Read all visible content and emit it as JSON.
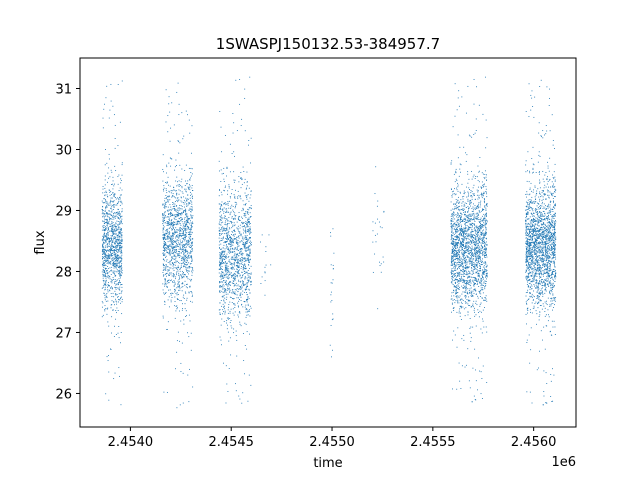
{
  "chart_data": {
    "type": "scatter",
    "title": "1SWASPJ150132.53-384957.7",
    "xlabel": "time",
    "ylabel": "flux",
    "x_offset_label": "1e6",
    "xlim": [
      2453750,
      2456210
    ],
    "ylim": [
      25.45,
      31.5
    ],
    "x_ticks": [
      2454000,
      2454500,
      2455000,
      2455500,
      2456000
    ],
    "x_tick_labels": [
      "2.4540",
      "2.4545",
      "2.4550",
      "2.4555",
      "2.4560"
    ],
    "y_ticks": [
      26,
      27,
      28,
      29,
      30,
      31
    ],
    "y_tick_labels": [
      "26",
      "27",
      "28",
      "29",
      "30",
      "31"
    ],
    "grid": false,
    "marker_color": "#1f77b4",
    "clusters": [
      {
        "x_range": [
          2453860,
          2453960
        ],
        "center": 28.4,
        "spread": 0.55,
        "outlier_range": [
          25.8,
          31.2
        ],
        "count": 1100
      },
      {
        "x_range": [
          2454160,
          2454310
        ],
        "center": 28.5,
        "spread": 0.55,
        "outlier_range": [
          25.75,
          31.1
        ],
        "count": 1300
      },
      {
        "x_range": [
          2454440,
          2454600
        ],
        "center": 28.3,
        "spread": 0.6,
        "outlier_range": [
          25.75,
          31.2
        ],
        "count": 1300
      },
      {
        "x_range": [
          2454640,
          2454700
        ],
        "center": 28.2,
        "spread": 0.4,
        "outlier_range": [
          27.4,
          28.6
        ],
        "count": 14
      },
      {
        "x_range": [
          2454990,
          2455010
        ],
        "center": 27.9,
        "spread": 0.6,
        "outlier_range": [
          26.6,
          28.7
        ],
        "count": 22
      },
      {
        "x_range": [
          2455200,
          2455260
        ],
        "center": 28.5,
        "spread": 0.8,
        "outlier_range": [
          27.0,
          30.1
        ],
        "count": 26
      },
      {
        "x_range": [
          2455590,
          2455770
        ],
        "center": 28.4,
        "spread": 0.55,
        "outlier_range": [
          25.8,
          31.2
        ],
        "count": 2000
      },
      {
        "x_range": [
          2455960,
          2456110
        ],
        "center": 28.4,
        "spread": 0.55,
        "outlier_range": [
          25.75,
          31.2
        ],
        "count": 1900
      }
    ]
  }
}
